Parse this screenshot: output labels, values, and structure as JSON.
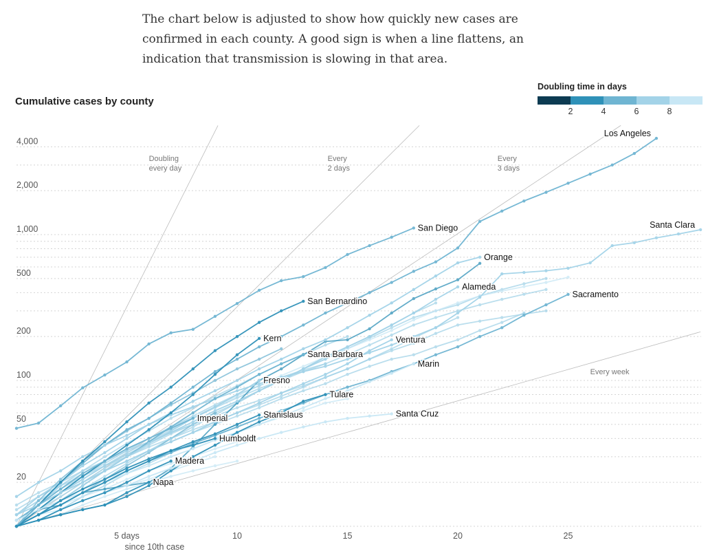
{
  "intro": "The chart below is adjusted to show how quickly new cases are confirmed in each county. A good sign is when a line flattens, an indication that transmission is slowing in that area.",
  "legend": {
    "title": "Doubling time in days",
    "ticks": [
      "2",
      "4",
      "6",
      "8"
    ],
    "bins": [
      {
        "max": 2,
        "color": "#0d3b52"
      },
      {
        "max": 4,
        "color": "#2f91b8"
      },
      {
        "max": 6,
        "color": "#6fb5d2"
      },
      {
        "max": 8,
        "color": "#a3d3e8"
      },
      {
        "max": 99,
        "color": "#c8e7f5"
      }
    ]
  },
  "chart_data": {
    "type": "line",
    "title": "Cumulative cases by county",
    "xlabel": "since 10th case",
    "ylabel": "",
    "y_scale": "log",
    "xlim": [
      0,
      31
    ],
    "ylim": [
      10,
      5600
    ],
    "x_ticks": [
      {
        "value": 5,
        "label": "5 days"
      },
      {
        "value": 10,
        "label": "10"
      },
      {
        "value": 15,
        "label": "15"
      },
      {
        "value": 20,
        "label": "20"
      },
      {
        "value": 25,
        "label": "25"
      }
    ],
    "y_ticks": [
      {
        "value": 4000,
        "label": "4,000"
      },
      {
        "value": 2000,
        "label": "2,000"
      },
      {
        "value": 1000,
        "label": "1,000"
      },
      {
        "value": 500,
        "label": "500"
      },
      {
        "value": 200,
        "label": "200"
      },
      {
        "value": 100,
        "label": "100"
      },
      {
        "value": 50,
        "label": "50"
      },
      {
        "value": 20,
        "label": "20"
      }
    ],
    "gridlines": [
      10,
      20,
      30,
      40,
      50,
      60,
      70,
      80,
      90,
      100,
      200,
      300,
      400,
      500,
      600,
      700,
      800,
      900,
      1000,
      2000,
      3000,
      4000
    ],
    "reference_lines": [
      {
        "doubling_days": 1,
        "label1": "Doubling",
        "label2": "every day",
        "label_at": [
          6.0,
          3200
        ]
      },
      {
        "doubling_days": 2,
        "label1": "Every",
        "label2": "2 days",
        "label_at": [
          14.1,
          3200
        ]
      },
      {
        "doubling_days": 3,
        "label1": "Every",
        "label2": "3 days",
        "label_at": [
          21.8,
          3200
        ]
      },
      {
        "doubling_days": 7,
        "label1": "Every week",
        "label2": "",
        "label_at": [
          26.0,
          110
        ]
      }
    ],
    "series": [
      {
        "name": "",
        "doubling": 7,
        "values": [
          10,
          13,
          16,
          20,
          25,
          30,
          36,
          43,
          50,
          60,
          70,
          85,
          100,
          120,
          140,
          170,
          200,
          240,
          290,
          340
        ]
      },
      {
        "name": "",
        "doubling": 7,
        "values": [
          10,
          12,
          15,
          18,
          22,
          27,
          33,
          40,
          48,
          58,
          70,
          85,
          100,
          120,
          140,
          165,
          195,
          230,
          270,
          300,
          330,
          380,
          420,
          460,
          500
        ]
      },
      {
        "name": "",
        "doubling": 7.5,
        "values": [
          11,
          14,
          17,
          20,
          24,
          28,
          33,
          38,
          44,
          50,
          57,
          65,
          75,
          85,
          95,
          110,
          125,
          140,
          150,
          170,
          190,
          220,
          250,
          290
        ]
      },
      {
        "name": "",
        "doubling": 8.5,
        "values": [
          12,
          15,
          19,
          23,
          28,
          34,
          40,
          48,
          56,
          66,
          78,
          92,
          108,
          125,
          145,
          165,
          190,
          220,
          260,
          300,
          340,
          380,
          410,
          440,
          470,
          510
        ]
      },
      {
        "name": "",
        "doubling": 7,
        "values": [
          10,
          13,
          17,
          21,
          26,
          32,
          38,
          46,
          55,
          65,
          76,
          88,
          100,
          115,
          130,
          150,
          175,
          205,
          240,
          270,
          300,
          330,
          360,
          390,
          420
        ]
      },
      {
        "name": "",
        "doubling": 5,
        "values": [
          10,
          12,
          14,
          17,
          21,
          26,
          32,
          40,
          50,
          60
        ]
      },
      {
        "name": "",
        "doubling": 6.5,
        "values": [
          12,
          15,
          18,
          22,
          27,
          33,
          40,
          48,
          57,
          68,
          80,
          92,
          105,
          118,
          130
        ]
      },
      {
        "name": "",
        "doubling": 7,
        "values": [
          10,
          11,
          13,
          16,
          19,
          23,
          27,
          32,
          37,
          42,
          48,
          55,
          62,
          70,
          80,
          90
        ]
      },
      {
        "name": "",
        "doubling": 6,
        "values": [
          14,
          17,
          20,
          24,
          28,
          33,
          38,
          44,
          50,
          57,
          65,
          73,
          82,
          92,
          105,
          120,
          140,
          160,
          180,
          210,
          240,
          255,
          270,
          285,
          300
        ]
      },
      {
        "name": "",
        "doubling": 8.5,
        "values": [
          10,
          12,
          14,
          16,
          18,
          21,
          24,
          27,
          30,
          34,
          38
        ]
      },
      {
        "name": "",
        "doubling": 9,
        "values": [
          11,
          13,
          15,
          18,
          21,
          24,
          28,
          32,
          36,
          40,
          44,
          50,
          56,
          62,
          70,
          75
        ]
      },
      {
        "name": "",
        "doubling": 6,
        "values": [
          10,
          14,
          19,
          24,
          30,
          37,
          45,
          55,
          65,
          78,
          92,
          110,
          130,
          150,
          175,
          200
        ]
      },
      {
        "name": "",
        "doubling": 9,
        "values": [
          10,
          12,
          13,
          15,
          17,
          19,
          21,
          24,
          27,
          30
        ]
      },
      {
        "name": "",
        "doubling": 6.5,
        "values": [
          13,
          16,
          19,
          22,
          26,
          30,
          35,
          40,
          46,
          52,
          60,
          68,
          78,
          90,
          105,
          120,
          140,
          165,
          195,
          230,
          270
        ]
      },
      {
        "name": "",
        "doubling": 5,
        "values": [
          10,
          15,
          21,
          28,
          36,
          45,
          55,
          68,
          82,
          100,
          120,
          140,
          165
        ]
      },
      {
        "name": "",
        "doubling": 9,
        "values": [
          10,
          11,
          12,
          14,
          16,
          18,
          20,
          22,
          24,
          26,
          28
        ]
      },
      {
        "name": "",
        "doubling": 3,
        "values": [
          10,
          13,
          14,
          17,
          18,
          19,
          20,
          25,
          35,
          50,
          70,
          100,
          120,
          150,
          185,
          190,
          226,
          290,
          364,
          424,
          490,
          635
        ]
      },
      {
        "name": "Los Angeles",
        "doubling": 4.5,
        "label_position": "above",
        "values": [
          11,
          14,
          20,
          27,
          36,
          46,
          55,
          70,
          90,
          115,
          140,
          170,
          200,
          240,
          290,
          340,
          400,
          470,
          560,
          650,
          810,
          1230,
          1450,
          1700,
          1950,
          2250,
          2600,
          3000,
          3600,
          4570
        ]
      },
      {
        "name": "San Diego",
        "doubling": 5,
        "label_position": "right",
        "values": [
          47,
          51,
          67,
          89,
          109,
          134,
          178,
          212,
          224,
          275,
          337,
          415,
          483,
          515,
          594,
          730,
          840,
          960,
          1110
        ]
      },
      {
        "name": "Santa Clara",
        "doubling": 7,
        "label_position": "above",
        "values": [
          16,
          20,
          24,
          30,
          36,
          42,
          50,
          58,
          66,
          75,
          85,
          95,
          105,
          115,
          125,
          140,
          155,
          175,
          200,
          230,
          290,
          372,
          538,
          550,
          565,
          588,
          640,
          840,
          880,
          950,
          1010,
          1080
        ]
      },
      {
        "name": "Orange",
        "doubling": 6.5,
        "label_position": "right",
        "values": [
          12,
          16,
          20,
          26,
          32,
          40,
          50,
          60,
          72,
          85,
          100,
          120,
          140,
          165,
          190,
          230,
          280,
          340,
          420,
          520,
          640,
          700
        ]
      },
      {
        "name": "Alameda",
        "doubling": 6.5,
        "label_position": "right",
        "values": [
          10,
          13,
          17,
          21,
          26,
          31,
          37,
          44,
          52,
          62,
          72,
          85,
          100,
          120,
          145,
          170,
          200,
          240,
          290,
          360,
          438
        ]
      },
      {
        "name": "Sacramento",
        "doubling": 5,
        "label_position": "right",
        "values": [
          10,
          12,
          14,
          17,
          20,
          24,
          28,
          32,
          37,
          42,
          48,
          55,
          62,
          70,
          80,
          90,
          100,
          115,
          130,
          150,
          170,
          200,
          230,
          280,
          330,
          389
        ]
      },
      {
        "name": "San Bernardino",
        "doubling": 3,
        "label_position": "right",
        "values": [
          10,
          14,
          20,
          28,
          38,
          52,
          70,
          90,
          120,
          160,
          200,
          250,
          300,
          349
        ]
      },
      {
        "name": "Kern",
        "doubling": 3,
        "label_position": "right",
        "values": [
          10,
          13,
          17,
          22,
          28,
          36,
          46,
          60,
          80,
          110,
          150,
          194
        ]
      },
      {
        "name": "Santa Barbara",
        "doubling": 5,
        "label_position": "right",
        "values": [
          10,
          12,
          15,
          19,
          24,
          30,
          38,
          48,
          60,
          75,
          90,
          110,
          130,
          151
        ]
      },
      {
        "name": "Ventura",
        "doubling": 6.5,
        "label_position": "right",
        "values": [
          12,
          14,
          17,
          20,
          24,
          28,
          33,
          38,
          44,
          52,
          60,
          70,
          82,
          95,
          110,
          130,
          160,
          190
        ]
      },
      {
        "name": "Marin",
        "doubling": 9,
        "label_position": "right",
        "values": [
          11,
          13,
          15,
          17,
          20,
          23,
          26,
          30,
          34,
          39,
          44,
          50,
          57,
          65,
          75,
          85,
          98,
          112,
          130
        ]
      },
      {
        "name": "Fresno",
        "doubling": 6,
        "label_position": "right",
        "values": [
          10,
          12,
          15,
          19,
          24,
          30,
          37,
          45,
          55,
          66,
          80,
          100
        ]
      },
      {
        "name": "Tulare",
        "doubling": 3.5,
        "label_position": "right",
        "values": [
          10,
          11,
          12,
          13,
          14,
          16,
          19,
          24,
          30,
          36,
          44,
          52,
          60,
          72,
          80
        ]
      },
      {
        "name": "Stanislaus",
        "doubling": 3.5,
        "label_position": "right",
        "values": [
          10,
          12,
          14,
          17,
          20,
          24,
          28,
          33,
          38,
          43,
          50,
          58
        ]
      },
      {
        "name": "Santa Cruz",
        "doubling": 8.5,
        "label_position": "right",
        "values": [
          10,
          11,
          13,
          15,
          17,
          19,
          22,
          25,
          28,
          32,
          36,
          40,
          44,
          48,
          52,
          55,
          57,
          59
        ]
      },
      {
        "name": "Imperial",
        "doubling": 4.5,
        "label_position": "right",
        "values": [
          10,
          14,
          18,
          23,
          28,
          34,
          40,
          47,
          55
        ]
      },
      {
        "name": "Humboldt",
        "doubling": 3.5,
        "label_position": "right",
        "values": [
          10,
          12,
          15,
          18,
          21,
          25,
          29,
          33,
          36,
          40
        ]
      },
      {
        "name": "Madera",
        "doubling": 3.5,
        "label_position": "right",
        "values": [
          10,
          11,
          13,
          15,
          17,
          20,
          24,
          28
        ]
      },
      {
        "name": "Napa",
        "doubling": 3.5,
        "label_position": "right",
        "values": [
          10,
          11,
          12,
          13,
          14,
          17,
          20
        ]
      }
    ]
  }
}
